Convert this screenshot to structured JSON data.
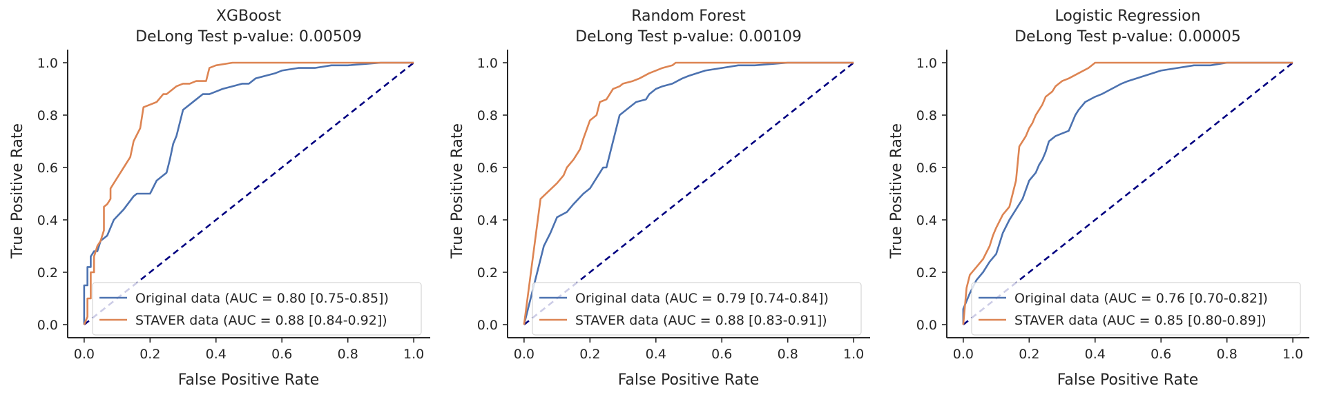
{
  "colors": {
    "original": "#4c72b0",
    "staver": "#dd8452",
    "chance": "#000080",
    "axis": "#262626"
  },
  "chart_data": [
    {
      "type": "line",
      "title": "XGBoost",
      "subtitle": "DeLong Test p-value: 0.00509",
      "xlabel": "False Positive Rate",
      "ylabel": "True Positive Rate",
      "xlim": [
        -0.05,
        1.05
      ],
      "ylim": [
        -0.05,
        1.05
      ],
      "xticks": [
        "0.0",
        "0.2",
        "0.4",
        "0.6",
        "0.8",
        "1.0"
      ],
      "yticks": [
        "0.0",
        "0.2",
        "0.4",
        "0.6",
        "0.8",
        "1.0"
      ],
      "grid": false,
      "legend_position": "lower-right",
      "series": [
        {
          "name": "Original data (AUC = 0.80 [0.75-0.85])",
          "x": [
            0,
            0,
            0.01,
            0.01,
            0.02,
            0.02,
            0.03,
            0.04,
            0.05,
            0.06,
            0.07,
            0.08,
            0.09,
            0.12,
            0.15,
            0.16,
            0.2,
            0.22,
            0.25,
            0.26,
            0.27,
            0.28,
            0.3,
            0.32,
            0.34,
            0.36,
            0.38,
            0.4,
            0.42,
            0.45,
            0.48,
            0.5,
            0.52,
            0.55,
            0.58,
            0.6,
            0.65,
            0.7,
            0.75,
            0.8,
            0.9,
            1.0
          ],
          "y": [
            0,
            0.15,
            0.15,
            0.22,
            0.22,
            0.26,
            0.28,
            0.28,
            0.32,
            0.33,
            0.34,
            0.37,
            0.4,
            0.44,
            0.49,
            0.5,
            0.5,
            0.55,
            0.58,
            0.63,
            0.69,
            0.72,
            0.82,
            0.84,
            0.86,
            0.88,
            0.88,
            0.89,
            0.9,
            0.91,
            0.92,
            0.92,
            0.94,
            0.95,
            0.96,
            0.97,
            0.98,
            0.98,
            0.99,
            0.99,
            1.0,
            1.0
          ]
        },
        {
          "name": "STAVER data (AUC = 0.88 [0.84-0.92])",
          "x": [
            0,
            0.01,
            0.01,
            0.02,
            0.02,
            0.03,
            0.03,
            0.04,
            0.05,
            0.06,
            0.06,
            0.07,
            0.08,
            0.08,
            0.1,
            0.12,
            0.14,
            0.15,
            0.17,
            0.18,
            0.2,
            0.22,
            0.24,
            0.25,
            0.27,
            0.28,
            0.3,
            0.32,
            0.34,
            0.37,
            0.38,
            0.4,
            0.45,
            0.5,
            0.6,
            0.8,
            1.0
          ],
          "y": [
            0,
            0.03,
            0.1,
            0.1,
            0.2,
            0.2,
            0.26,
            0.3,
            0.32,
            0.36,
            0.45,
            0.46,
            0.48,
            0.52,
            0.56,
            0.6,
            0.64,
            0.7,
            0.75,
            0.83,
            0.84,
            0.85,
            0.88,
            0.88,
            0.9,
            0.91,
            0.92,
            0.92,
            0.93,
            0.93,
            0.98,
            0.99,
            1.0,
            1.0,
            1.0,
            1.0,
            1.0
          ]
        },
        {
          "name": "chance",
          "x": [
            0,
            1
          ],
          "y": [
            0,
            1
          ]
        }
      ]
    },
    {
      "type": "line",
      "title": "Random Forest",
      "subtitle": "DeLong Test p-value: 0.00109",
      "xlabel": "False Positive Rate",
      "ylabel": "True Positive Rate",
      "xlim": [
        -0.05,
        1.05
      ],
      "ylim": [
        -0.05,
        1.05
      ],
      "xticks": [
        "0.0",
        "0.2",
        "0.4",
        "0.6",
        "0.8",
        "1.0"
      ],
      "yticks": [
        "0.0",
        "0.2",
        "0.4",
        "0.6",
        "0.8",
        "1.0"
      ],
      "grid": false,
      "legend_position": "lower-right",
      "series": [
        {
          "name": "Original data (AUC = 0.79 [0.74-0.84])",
          "x": [
            0,
            0.02,
            0.04,
            0.06,
            0.08,
            0.1,
            0.13,
            0.15,
            0.18,
            0.2,
            0.22,
            0.24,
            0.25,
            0.27,
            0.29,
            0.31,
            0.34,
            0.37,
            0.38,
            0.4,
            0.42,
            0.45,
            0.48,
            0.5,
            0.55,
            0.6,
            0.65,
            0.7,
            0.8,
            0.9,
            1.0
          ],
          "y": [
            0,
            0.1,
            0.2,
            0.3,
            0.35,
            0.41,
            0.43,
            0.46,
            0.5,
            0.52,
            0.56,
            0.6,
            0.6,
            0.7,
            0.8,
            0.82,
            0.85,
            0.86,
            0.88,
            0.9,
            0.91,
            0.92,
            0.94,
            0.95,
            0.97,
            0.98,
            0.99,
            0.99,
            1.0,
            1.0,
            1.0
          ]
        },
        {
          "name": "STAVER data (AUC = 0.88 [0.83-0.91])",
          "x": [
            0,
            0.05,
            0.1,
            0.12,
            0.13,
            0.15,
            0.17,
            0.18,
            0.2,
            0.22,
            0.23,
            0.25,
            0.27,
            0.29,
            0.3,
            0.33,
            0.35,
            0.38,
            0.4,
            0.42,
            0.45,
            0.46,
            0.5,
            0.6,
            0.8,
            1.0
          ],
          "y": [
            0,
            0.48,
            0.54,
            0.57,
            0.6,
            0.63,
            0.67,
            0.71,
            0.78,
            0.8,
            0.85,
            0.86,
            0.9,
            0.91,
            0.92,
            0.93,
            0.94,
            0.96,
            0.97,
            0.98,
            0.99,
            1.0,
            1.0,
            1.0,
            1.0,
            1.0
          ]
        },
        {
          "name": "chance",
          "x": [
            0,
            1
          ],
          "y": [
            0,
            1
          ]
        }
      ]
    },
    {
      "type": "line",
      "title": "Logistic Regression",
      "subtitle": "DeLong Test p-value: 0.00005",
      "xlabel": "False Positive Rate",
      "ylabel": "True Positive Rate",
      "xlim": [
        -0.05,
        1.05
      ],
      "ylim": [
        -0.05,
        1.05
      ],
      "xticks": [
        "0.0",
        "0.2",
        "0.4",
        "0.6",
        "0.8",
        "1.0"
      ],
      "yticks": [
        "0.0",
        "0.2",
        "0.4",
        "0.6",
        "0.8",
        "1.0"
      ],
      "grid": false,
      "legend_position": "lower-right",
      "series": [
        {
          "name": "Original data (AUC = 0.76 [0.70-0.82])",
          "x": [
            0,
            0,
            0.02,
            0.04,
            0.06,
            0.08,
            0.1,
            0.12,
            0.14,
            0.16,
            0.18,
            0.2,
            0.22,
            0.23,
            0.24,
            0.25,
            0.26,
            0.27,
            0.28,
            0.3,
            0.32,
            0.34,
            0.35,
            0.37,
            0.4,
            0.42,
            0.45,
            0.48,
            0.5,
            0.55,
            0.6,
            0.65,
            0.7,
            0.75,
            0.8,
            0.9,
            1.0
          ],
          "y": [
            0,
            0.06,
            0.12,
            0.17,
            0.2,
            0.24,
            0.27,
            0.35,
            0.4,
            0.44,
            0.48,
            0.55,
            0.58,
            0.61,
            0.63,
            0.66,
            0.7,
            0.71,
            0.72,
            0.73,
            0.74,
            0.8,
            0.82,
            0.85,
            0.87,
            0.88,
            0.9,
            0.92,
            0.93,
            0.95,
            0.97,
            0.98,
            0.99,
            0.99,
            1.0,
            1.0,
            1.0
          ]
        },
        {
          "name": "STAVER data (AUC = 0.85 [0.80-0.89])",
          "x": [
            0,
            0.01,
            0.02,
            0.04,
            0.06,
            0.08,
            0.09,
            0.1,
            0.12,
            0.14,
            0.15,
            0.16,
            0.17,
            0.18,
            0.19,
            0.2,
            0.21,
            0.22,
            0.23,
            0.24,
            0.25,
            0.26,
            0.27,
            0.28,
            0.29,
            0.3,
            0.32,
            0.35,
            0.38,
            0.4,
            0.45,
            0.5,
            0.6,
            0.8,
            1.0
          ],
          "y": [
            0,
            0.14,
            0.19,
            0.22,
            0.25,
            0.3,
            0.34,
            0.37,
            0.42,
            0.45,
            0.5,
            0.55,
            0.68,
            0.7,
            0.72,
            0.75,
            0.77,
            0.8,
            0.82,
            0.84,
            0.87,
            0.88,
            0.89,
            0.91,
            0.92,
            0.93,
            0.94,
            0.96,
            0.98,
            1.0,
            1.0,
            1.0,
            1.0,
            1.0,
            1.0
          ]
        },
        {
          "name": "chance",
          "x": [
            0,
            1
          ],
          "y": [
            0,
            1
          ]
        }
      ]
    }
  ]
}
